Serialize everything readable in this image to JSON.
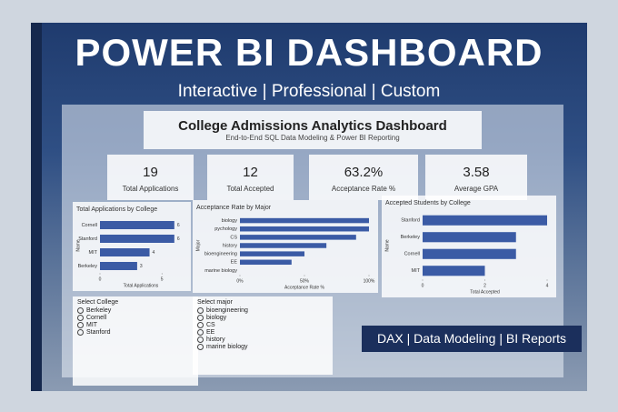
{
  "header": {
    "title": "POWER BI DASHBOARD",
    "subtitle": "Interactive | Professional | Custom"
  },
  "dashboard": {
    "title": "College Admissions Analytics Dashboard",
    "subtitle": "End-to-End SQL Data Modeling & Power BI Reporting",
    "kpis": [
      {
        "value": "19",
        "label": "Total Applications"
      },
      {
        "value": "12",
        "label": "Total Accepted"
      },
      {
        "value": "63.2%",
        "label": "Acceptance Rate %"
      },
      {
        "value": "3.58",
        "label": "Average GPA"
      }
    ],
    "slicers": [
      {
        "title": "Select College",
        "options": [
          "Berkeley",
          "Cornell",
          "MIT",
          "Stanford"
        ]
      },
      {
        "title": "Select major",
        "options": [
          "bioengineering",
          "biology",
          "CS",
          "EE",
          "history",
          "marine biology"
        ]
      }
    ]
  },
  "chart_data": [
    {
      "type": "bar",
      "orientation": "horizontal",
      "title": "Total Applications by College",
      "categories": [
        "Cornell",
        "Stanford",
        "MIT",
        "Berkeley"
      ],
      "values": [
        6,
        6,
        4,
        3
      ],
      "color": "#3b5ba5",
      "xlim": [
        0,
        6.6
      ],
      "xticks": [
        0,
        5
      ],
      "x_label": "Total Applications",
      "y_label": "Name",
      "data_labels": true
    },
    {
      "type": "bar",
      "orientation": "horizontal",
      "title": "Acceptance Rate by Major",
      "categories": [
        "biology",
        "pychology",
        "CS",
        "history",
        "bioengineering",
        "EE",
        "marine biology"
      ],
      "values": [
        100,
        100,
        90,
        67,
        50,
        40,
        0
      ],
      "color": "#3b5ba5",
      "xlim": [
        0,
        100
      ],
      "xticks": [
        {
          "value": 0,
          "label": "0%"
        },
        {
          "value": 50,
          "label": "50%"
        },
        {
          "value": 100,
          "label": "100%"
        }
      ],
      "x_label": "Acceptance Rate %",
      "y_label": "Major",
      "data_labels": false
    },
    {
      "type": "bar",
      "orientation": "horizontal",
      "title": "Accepted Students by College",
      "categories": [
        "Stanford",
        "Berkeley",
        "Cornell",
        "MIT"
      ],
      "values": [
        4,
        3,
        3,
        2
      ],
      "color": "#3b5ba5",
      "xlim": [
        0,
        4
      ],
      "xticks": [
        0,
        2,
        4
      ],
      "x_label": "Total Accepted",
      "y_label": "Name",
      "data_labels": false
    }
  ],
  "banner": "DAX | Data Modeling | BI Reports"
}
